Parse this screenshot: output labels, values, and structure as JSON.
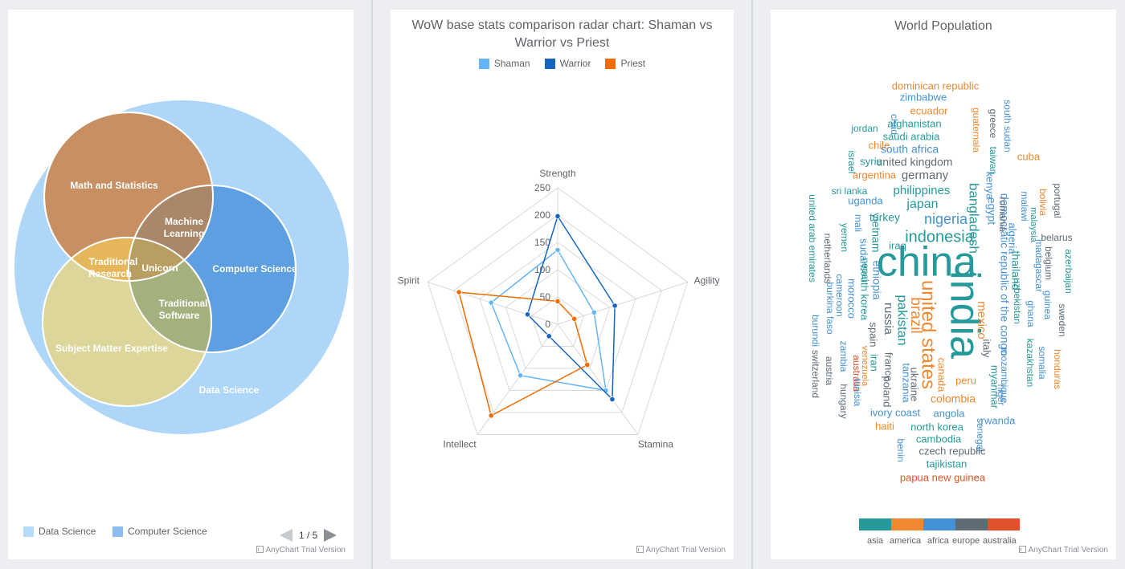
{
  "colors": {
    "venn_data_science": "#aed6f8",
    "venn_computer_science": "#5d9fe0",
    "venn_math": "#c88f62",
    "venn_sme": "#dcd69a",
    "venn_traditional_research": "#e5b65a",
    "venn_machine_learning": "#a98768",
    "venn_traditional_software": "#a4b17f",
    "venn_unicorn": "#b99e62",
    "shaman": "#64b5f6",
    "warrior": "#1565c0",
    "priest": "#ef6c00",
    "asia": "#26999a",
    "america": "#ef8830",
    "africa": "#4591d6",
    "europe": "#5f6b75",
    "australia": "#e0522b"
  },
  "venn": {
    "labels": {
      "data_science": "Data Science",
      "math": "Math and Statistics",
      "computer_science": "Computer Science",
      "sme": "Subject Matter Expertise",
      "machine_learning_1": "Machine",
      "machine_learning_2": "Learning",
      "traditional_research_1": "Traditional",
      "traditional_research_2": "Research",
      "unicorn": "Unicorn",
      "traditional_software_1": "Traditional",
      "traditional_software_2": "Software"
    },
    "legend": [
      "Data Science",
      "Computer Science"
    ],
    "pager": "1 / 5",
    "credit": "AnyChart Trial Version"
  },
  "radar": {
    "title_line1": "WoW base stats comparison radar chart: Shaman vs",
    "title_line2": "Warrior vs Priest",
    "credit": "AnyChart Trial Version"
  },
  "chart_data": [
    {
      "type": "radar",
      "title": "WoW base stats comparison radar chart: Shaman vs Warrior vs Priest",
      "categories": [
        "Strength",
        "Agility",
        "Stamina",
        "Intellect",
        "Spirit"
      ],
      "ylim": [
        0,
        250
      ],
      "ticks": [
        0,
        50,
        100,
        150,
        200,
        250
      ],
      "series": [
        {
          "name": "Shaman",
          "values": [
            136,
            70,
            150,
            116,
            128
          ]
        },
        {
          "name": "Warrior",
          "values": [
            198,
            110,
            170,
            27,
            58
          ]
        },
        {
          "name": "Priest",
          "values": [
            42,
            32,
            92,
            207,
            190
          ]
        }
      ],
      "legend": "top"
    },
    {
      "type": "venn",
      "sets": [
        "Data Science",
        "Math and Statistics",
        "Computer Science",
        "Subject Matter Expertise"
      ],
      "intersections": [
        "Machine Learning",
        "Traditional Research",
        "Traditional Software",
        "Unicorn"
      ]
    },
    {
      "type": "tagcloud",
      "title": "World Population",
      "categories": [
        "asia",
        "america",
        "africa",
        "europe",
        "australia"
      ],
      "words": [
        {
          "text": "china",
          "cat": "asia"
        },
        {
          "text": "india",
          "cat": "asia"
        },
        {
          "text": "united states",
          "cat": "america"
        },
        {
          "text": "indonesia",
          "cat": "asia"
        },
        {
          "text": "brazil",
          "cat": "america"
        },
        {
          "text": "pakistan",
          "cat": "asia"
        },
        {
          "text": "nigeria",
          "cat": "africa"
        },
        {
          "text": "bangladesh",
          "cat": "asia"
        },
        {
          "text": "russia",
          "cat": "europe"
        },
        {
          "text": "japan",
          "cat": "asia"
        },
        {
          "text": "mexico",
          "cat": "america"
        },
        {
          "text": "philippines",
          "cat": "asia"
        },
        {
          "text": "ethiopia",
          "cat": "africa"
        },
        {
          "text": "vietnam",
          "cat": "asia"
        },
        {
          "text": "egypt",
          "cat": "africa"
        },
        {
          "text": "germany",
          "cat": "europe"
        },
        {
          "text": "iran",
          "cat": "asia"
        },
        {
          "text": "democratic republic of the congo",
          "cat": "africa"
        },
        {
          "text": "turkey",
          "cat": "asia"
        },
        {
          "text": "thailand",
          "cat": "asia"
        },
        {
          "text": "france",
          "cat": "europe"
        },
        {
          "text": "united kingdom",
          "cat": "europe"
        },
        {
          "text": "italy",
          "cat": "europe"
        },
        {
          "text": "south africa",
          "cat": "africa"
        },
        {
          "text": "myanmar",
          "cat": "asia"
        },
        {
          "text": "tanzania",
          "cat": "africa"
        },
        {
          "text": "south korea",
          "cat": "asia"
        },
        {
          "text": "colombia",
          "cat": "america"
        },
        {
          "text": "kenya",
          "cat": "africa"
        },
        {
          "text": "spain",
          "cat": "europe"
        },
        {
          "text": "argentina",
          "cat": "america"
        },
        {
          "text": "ukraine",
          "cat": "europe"
        },
        {
          "text": "algeria",
          "cat": "africa"
        },
        {
          "text": "sudan",
          "cat": "africa"
        },
        {
          "text": "uganda",
          "cat": "africa"
        },
        {
          "text": "iraq",
          "cat": "asia"
        },
        {
          "text": "poland",
          "cat": "europe"
        },
        {
          "text": "canada",
          "cat": "america"
        },
        {
          "text": "morocco",
          "cat": "africa"
        },
        {
          "text": "afghanistan",
          "cat": "asia"
        },
        {
          "text": "saudi arabia",
          "cat": "asia"
        },
        {
          "text": "peru",
          "cat": "america"
        },
        {
          "text": "venezuela",
          "cat": "america"
        },
        {
          "text": "uzbekistan",
          "cat": "asia"
        },
        {
          "text": "malaysia",
          "cat": "asia"
        },
        {
          "text": "angola",
          "cat": "africa"
        },
        {
          "text": "mozambique",
          "cat": "africa"
        },
        {
          "text": "nepal",
          "cat": "asia"
        },
        {
          "text": "ghana",
          "cat": "africa"
        },
        {
          "text": "yemen",
          "cat": "asia"
        },
        {
          "text": "madagascar",
          "cat": "africa"
        },
        {
          "text": "north korea",
          "cat": "asia"
        },
        {
          "text": "australia",
          "cat": "australia"
        },
        {
          "text": "ivory coast",
          "cat": "africa"
        },
        {
          "text": "cameroon",
          "cat": "africa"
        },
        {
          "text": "taiwan",
          "cat": "asia"
        },
        {
          "text": "niger",
          "cat": "africa"
        },
        {
          "text": "sri lanka",
          "cat": "asia"
        },
        {
          "text": "burkina faso",
          "cat": "africa"
        },
        {
          "text": "mali",
          "cat": "africa"
        },
        {
          "text": "romania",
          "cat": "europe"
        },
        {
          "text": "malawi",
          "cat": "africa"
        },
        {
          "text": "chile",
          "cat": "america"
        },
        {
          "text": "kazakhstan",
          "cat": "asia"
        },
        {
          "text": "zambia",
          "cat": "africa"
        },
        {
          "text": "guatemala",
          "cat": "america"
        },
        {
          "text": "ecuador",
          "cat": "america"
        },
        {
          "text": "syria",
          "cat": "asia"
        },
        {
          "text": "netherlands",
          "cat": "europe"
        },
        {
          "text": "senegal",
          "cat": "africa"
        },
        {
          "text": "cambodia",
          "cat": "asia"
        },
        {
          "text": "chad",
          "cat": "africa"
        },
        {
          "text": "somalia",
          "cat": "africa"
        },
        {
          "text": "zimbabwe",
          "cat": "africa"
        },
        {
          "text": "guinea",
          "cat": "africa"
        },
        {
          "text": "rwanda",
          "cat": "africa"
        },
        {
          "text": "benin",
          "cat": "africa"
        },
        {
          "text": "burundi",
          "cat": "africa"
        },
        {
          "text": "tunisia",
          "cat": "africa"
        },
        {
          "text": "bolivia",
          "cat": "america"
        },
        {
          "text": "belgium",
          "cat": "europe"
        },
        {
          "text": "haiti",
          "cat": "america"
        },
        {
          "text": "cuba",
          "cat": "america"
        },
        {
          "text": "south sudan",
          "cat": "africa"
        },
        {
          "text": "dominican republic",
          "cat": "america"
        },
        {
          "text": "czech republic",
          "cat": "europe"
        },
        {
          "text": "greece",
          "cat": "europe"
        },
        {
          "text": "jordan",
          "cat": "asia"
        },
        {
          "text": "portugal",
          "cat": "europe"
        },
        {
          "text": "azerbaijan",
          "cat": "asia"
        },
        {
          "text": "sweden",
          "cat": "europe"
        },
        {
          "text": "honduras",
          "cat": "america"
        },
        {
          "text": "united arab emirates",
          "cat": "asia"
        },
        {
          "text": "hungary",
          "cat": "europe"
        },
        {
          "text": "tajikistan",
          "cat": "asia"
        },
        {
          "text": "belarus",
          "cat": "europe"
        },
        {
          "text": "austria",
          "cat": "europe"
        },
        {
          "text": "papua new guinea",
          "cat": "australia"
        },
        {
          "text": "switzerland",
          "cat": "europe"
        },
        {
          "text": "israel",
          "cat": "asia"
        }
      ]
    }
  ],
  "cloud": {
    "title": "World Population",
    "legend": [
      "asia",
      "america",
      "africa",
      "europe",
      "australia"
    ],
    "credit": "AnyChart Trial Version"
  }
}
